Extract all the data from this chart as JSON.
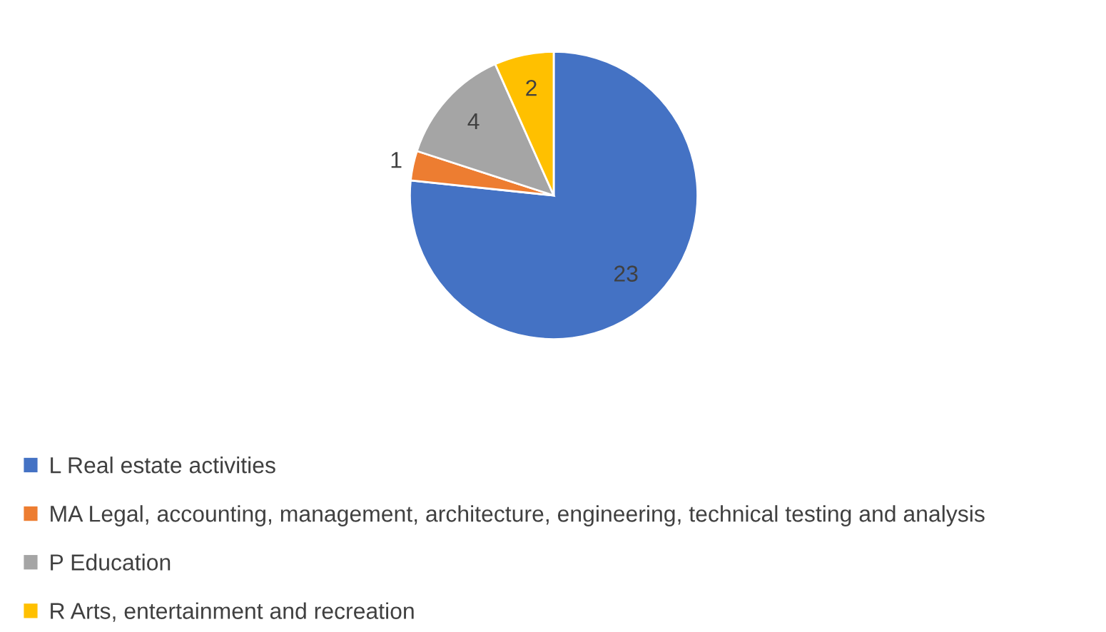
{
  "chart_data": {
    "type": "pie",
    "categories": [
      "L Real estate activities",
      "MA Legal, accounting, management, architecture, engineering, technical testing and analysis",
      "P Education",
      "R Arts, entertainment and recreation"
    ],
    "values": [
      23,
      1,
      4,
      2
    ],
    "colors": [
      "#4472c4",
      "#ed7d31",
      "#a5a5a5",
      "#ffc000"
    ],
    "data_labels": true,
    "legend": "bottom"
  }
}
